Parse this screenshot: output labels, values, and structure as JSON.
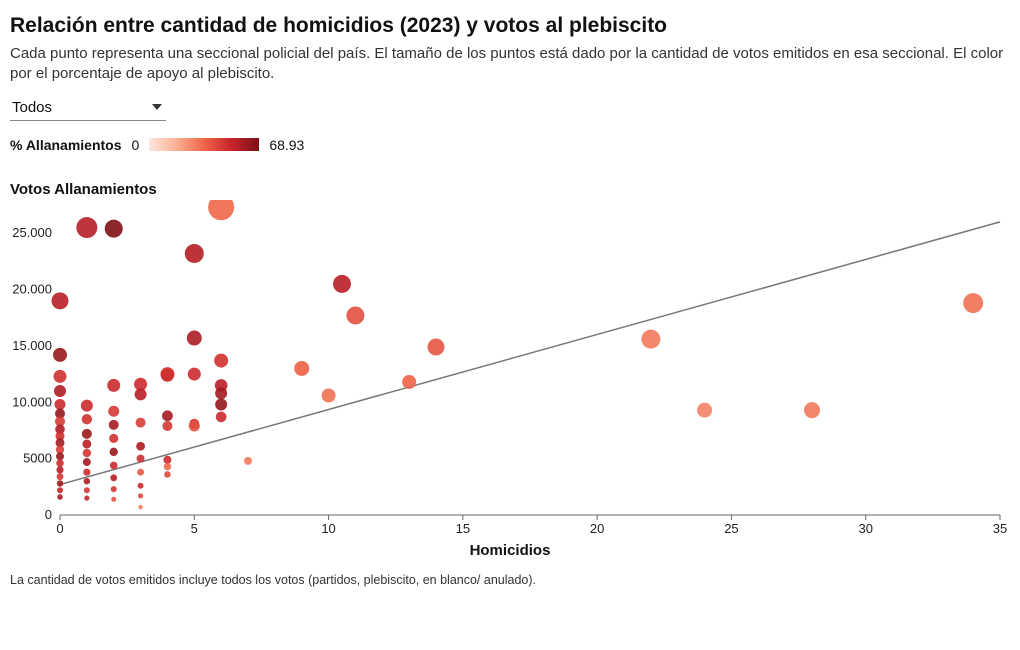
{
  "title": "Relación entre cantidad de homicidios (2023) y votos al plebiscito",
  "subtitle": "Cada punto representa una seccional policial del país. El tamaño de los puntos está dado por la cantidad de votos emitidos en esa seccional. El color por el porcentaje de apoyo al plebiscito.",
  "dropdown": {
    "selected": "Todos"
  },
  "legend": {
    "label": "% Allanamientos",
    "min": "0",
    "max": "68.93",
    "gradient_colors": [
      "#fde6dd",
      "#fbb093",
      "#ef6648",
      "#c8232a",
      "#7b1014"
    ]
  },
  "y_axis_title": "Votos Allanamientos",
  "x_axis_title": "Homicidios",
  "footnote": "La cantidad de votos emitidos incluye todos los votos (partidos, plebiscito, en blanco/ anulado).",
  "chart": {
    "type": "scatter",
    "xlim": [
      0,
      35
    ],
    "ylim": [
      0,
      27500
    ],
    "xtick_step": 5,
    "yticks": [
      0,
      5000,
      10000,
      15000,
      20000,
      25000
    ],
    "ytick_labels": [
      "0",
      "5000",
      "10.000",
      "15.000",
      "20.000",
      "25.000"
    ],
    "axis_text_color": "#222",
    "axis_line_color": "#666666",
    "background_color": "#ffffff",
    "trend_line": {
      "x1": 0,
      "y1": 2700,
      "x2": 35,
      "y2": 26000,
      "color": "#777777",
      "width": 1.5
    },
    "point_color_scale": {
      "min": 0,
      "max": 68.93
    },
    "points": [
      {
        "x": 0,
        "y": 19000,
        "r": 8.5,
        "pct": 55
      },
      {
        "x": 0,
        "y": 14200,
        "r": 7,
        "pct": 62
      },
      {
        "x": 0,
        "y": 12300,
        "r": 6.5,
        "pct": 48
      },
      {
        "x": 0,
        "y": 11000,
        "r": 6,
        "pct": 58
      },
      {
        "x": 0,
        "y": 9800,
        "r": 5.5,
        "pct": 50
      },
      {
        "x": 0,
        "y": 9000,
        "r": 5,
        "pct": 63
      },
      {
        "x": 0,
        "y": 8300,
        "r": 5,
        "pct": 46
      },
      {
        "x": 0,
        "y": 7600,
        "r": 4.8,
        "pct": 57
      },
      {
        "x": 0,
        "y": 7000,
        "r": 4.5,
        "pct": 49
      },
      {
        "x": 0,
        "y": 6400,
        "r": 4.5,
        "pct": 60
      },
      {
        "x": 0,
        "y": 5800,
        "r": 4.2,
        "pct": 45
      },
      {
        "x": 0,
        "y": 5200,
        "r": 4,
        "pct": 62
      },
      {
        "x": 0,
        "y": 4600,
        "r": 3.8,
        "pct": 50
      },
      {
        "x": 0,
        "y": 4000,
        "r": 3.6,
        "pct": 55
      },
      {
        "x": 0,
        "y": 3400,
        "r": 3.4,
        "pct": 47
      },
      {
        "x": 0,
        "y": 2800,
        "r": 3.2,
        "pct": 61
      },
      {
        "x": 0,
        "y": 2200,
        "r": 3,
        "pct": 52
      },
      {
        "x": 0,
        "y": 1600,
        "r": 2.8,
        "pct": 58
      },
      {
        "x": 1,
        "y": 25500,
        "r": 10.5,
        "pct": 55
      },
      {
        "x": 1,
        "y": 9700,
        "r": 6,
        "pct": 50
      },
      {
        "x": 1,
        "y": 8500,
        "r": 5.2,
        "pct": 48
      },
      {
        "x": 1,
        "y": 7200,
        "r": 5,
        "pct": 62
      },
      {
        "x": 1,
        "y": 6300,
        "r": 4.5,
        "pct": 55
      },
      {
        "x": 1,
        "y": 5500,
        "r": 4.2,
        "pct": 47
      },
      {
        "x": 1,
        "y": 4700,
        "r": 4,
        "pct": 60
      },
      {
        "x": 1,
        "y": 3800,
        "r": 3.6,
        "pct": 50
      },
      {
        "x": 1,
        "y": 3000,
        "r": 3.2,
        "pct": 57
      },
      {
        "x": 1,
        "y": 2200,
        "r": 3,
        "pct": 46
      },
      {
        "x": 1,
        "y": 1500,
        "r": 2.6,
        "pct": 52
      },
      {
        "x": 2,
        "y": 25400,
        "r": 9,
        "pct": 68
      },
      {
        "x": 2,
        "y": 11500,
        "r": 6.5,
        "pct": 50
      },
      {
        "x": 2,
        "y": 9200,
        "r": 5.5,
        "pct": 46
      },
      {
        "x": 2,
        "y": 8000,
        "r": 5,
        "pct": 59
      },
      {
        "x": 2,
        "y": 6800,
        "r": 4.6,
        "pct": 48
      },
      {
        "x": 2,
        "y": 5600,
        "r": 4.2,
        "pct": 62
      },
      {
        "x": 2,
        "y": 4400,
        "r": 3.8,
        "pct": 50
      },
      {
        "x": 2,
        "y": 3300,
        "r": 3.4,
        "pct": 55
      },
      {
        "x": 2,
        "y": 2300,
        "r": 3,
        "pct": 47
      },
      {
        "x": 2,
        "y": 1400,
        "r": 2.5,
        "pct": 40
      },
      {
        "x": 3,
        "y": 11600,
        "r": 6.5,
        "pct": 50
      },
      {
        "x": 3,
        "y": 10700,
        "r": 6,
        "pct": 55
      },
      {
        "x": 3,
        "y": 8200,
        "r": 5,
        "pct": 45
      },
      {
        "x": 3,
        "y": 6100,
        "r": 4.4,
        "pct": 58
      },
      {
        "x": 3,
        "y": 5000,
        "r": 4,
        "pct": 49
      },
      {
        "x": 3,
        "y": 3800,
        "r": 3.5,
        "pct": 37
      },
      {
        "x": 3,
        "y": 2600,
        "r": 3,
        "pct": 50
      },
      {
        "x": 3,
        "y": 1700,
        "r": 2.6,
        "pct": 42
      },
      {
        "x": 3,
        "y": 700,
        "r": 2.2,
        "pct": 30
      },
      {
        "x": 4,
        "y": 12400,
        "r": 6.5,
        "pct": 55
      },
      {
        "x": 4,
        "y": 12500,
        "r": 7,
        "pct": 48
      },
      {
        "x": 4,
        "y": 8800,
        "r": 5.4,
        "pct": 60
      },
      {
        "x": 4,
        "y": 7900,
        "r": 5,
        "pct": 46
      },
      {
        "x": 4,
        "y": 4900,
        "r": 4,
        "pct": 50
      },
      {
        "x": 4,
        "y": 4300,
        "r": 3.7,
        "pct": 34
      },
      {
        "x": 4,
        "y": 3600,
        "r": 3.3,
        "pct": 42
      },
      {
        "x": 5,
        "y": 23200,
        "r": 9.5,
        "pct": 56
      },
      {
        "x": 5,
        "y": 15700,
        "r": 7.5,
        "pct": 58
      },
      {
        "x": 5,
        "y": 12500,
        "r": 6.5,
        "pct": 50
      },
      {
        "x": 5,
        "y": 8100,
        "r": 5,
        "pct": 48
      },
      {
        "x": 5,
        "y": 7900,
        "r": 5.5,
        "pct": 40
      },
      {
        "x": 6,
        "y": 27300,
        "r": 13,
        "pct": 34
      },
      {
        "x": 6,
        "y": 13700,
        "r": 7,
        "pct": 48
      },
      {
        "x": 6,
        "y": 11500,
        "r": 6.3,
        "pct": 55
      },
      {
        "x": 6,
        "y": 10800,
        "r": 6,
        "pct": 60
      },
      {
        "x": 6,
        "y": 9800,
        "r": 6,
        "pct": 63
      },
      {
        "x": 6,
        "y": 8700,
        "r": 5.3,
        "pct": 50
      },
      {
        "x": 7,
        "y": 4800,
        "r": 4,
        "pct": 30
      },
      {
        "x": 9,
        "y": 13000,
        "r": 7.5,
        "pct": 36
      },
      {
        "x": 10,
        "y": 10600,
        "r": 7,
        "pct": 32
      },
      {
        "x": 10.5,
        "y": 20500,
        "r": 9,
        "pct": 55
      },
      {
        "x": 11,
        "y": 17700,
        "r": 9,
        "pct": 40
      },
      {
        "x": 13,
        "y": 11800,
        "r": 7,
        "pct": 35
      },
      {
        "x": 14,
        "y": 14900,
        "r": 8.5,
        "pct": 38
      },
      {
        "x": 22,
        "y": 15600,
        "r": 9.5,
        "pct": 30
      },
      {
        "x": 24,
        "y": 9300,
        "r": 7.5,
        "pct": 28
      },
      {
        "x": 28,
        "y": 9300,
        "r": 8,
        "pct": 30
      },
      {
        "x": 34,
        "y": 18800,
        "r": 10,
        "pct": 32
      }
    ]
  }
}
